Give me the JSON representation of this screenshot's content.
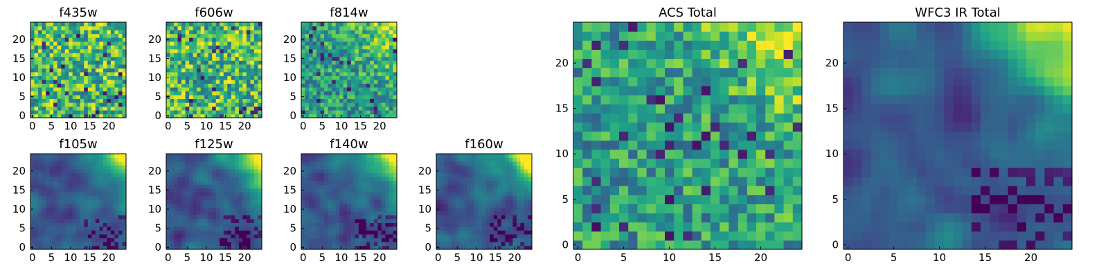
{
  "chart_data": [
    {
      "type": "heatmap",
      "title": "f435w",
      "grid_size": 25,
      "xlim": [
        0,
        24
      ],
      "ylim": [
        0,
        24
      ],
      "xticks": [
        0,
        5,
        10,
        15,
        20
      ],
      "yticks": [
        0,
        5,
        10,
        15,
        20
      ],
      "colormap": "viridis",
      "pattern": "noisy"
    },
    {
      "type": "heatmap",
      "title": "f606w",
      "grid_size": 25,
      "xlim": [
        0,
        24
      ],
      "ylim": [
        0,
        24
      ],
      "xticks": [
        0,
        5,
        10,
        15,
        20
      ],
      "yticks": [
        0,
        5,
        10,
        15,
        20
      ],
      "colormap": "viridis",
      "pattern": "noisy"
    },
    {
      "type": "heatmap",
      "title": "f814w",
      "grid_size": 25,
      "xlim": [
        0,
        24
      ],
      "ylim": [
        0,
        24
      ],
      "xticks": [
        0,
        5,
        10,
        15,
        20
      ],
      "yticks": [
        0,
        5,
        10,
        15,
        20
      ],
      "colormap": "viridis",
      "pattern": "noisy-bright-top-right"
    },
    {
      "type": "heatmap",
      "title": "f105w",
      "grid_size": 25,
      "xlim": [
        0,
        24
      ],
      "ylim": [
        0,
        24
      ],
      "xticks": [
        0,
        5,
        10,
        15,
        20
      ],
      "yticks": [
        0,
        5,
        10,
        15,
        20
      ],
      "colormap": "viridis",
      "pattern": "smooth-bright-top-right"
    },
    {
      "type": "heatmap",
      "title": "f125w",
      "grid_size": 25,
      "xlim": [
        0,
        24
      ],
      "ylim": [
        0,
        24
      ],
      "xticks": [
        0,
        5,
        10,
        15,
        20
      ],
      "yticks": [
        0,
        5,
        10,
        15,
        20
      ],
      "colormap": "viridis",
      "pattern": "smooth-bright-top-right"
    },
    {
      "type": "heatmap",
      "title": "f140w",
      "grid_size": 25,
      "xlim": [
        0,
        24
      ],
      "ylim": [
        0,
        24
      ],
      "xticks": [
        0,
        5,
        10,
        15,
        20
      ],
      "yticks": [
        0,
        5,
        10,
        15,
        20
      ],
      "colormap": "viridis",
      "pattern": "smooth-bright-top-right"
    },
    {
      "type": "heatmap",
      "title": "f160w",
      "grid_size": 25,
      "xlim": [
        0,
        24
      ],
      "ylim": [
        0,
        24
      ],
      "xticks": [
        0,
        5,
        10,
        15,
        20
      ],
      "yticks": [
        0,
        5,
        10,
        15,
        20
      ],
      "colormap": "viridis",
      "pattern": "smooth-bright-top-right"
    },
    {
      "type": "heatmap",
      "title": "ACS Total",
      "grid_size": 25,
      "xlim": [
        0,
        24
      ],
      "ylim": [
        0,
        24
      ],
      "xticks": [
        0,
        5,
        10,
        15,
        20
      ],
      "yticks": [
        0,
        5,
        10,
        15,
        20
      ],
      "colormap": "viridis",
      "pattern": "noisy-bright-top-right"
    },
    {
      "type": "heatmap",
      "title": "WFC3 IR Total",
      "grid_size": 25,
      "xlim": [
        0,
        24
      ],
      "ylim": [
        0,
        24
      ],
      "xticks": [
        0,
        5,
        10,
        15,
        20
      ],
      "yticks": [
        0,
        5,
        10,
        15,
        20
      ],
      "colormap": "viridis",
      "pattern": "smooth-bright-top-right"
    }
  ]
}
